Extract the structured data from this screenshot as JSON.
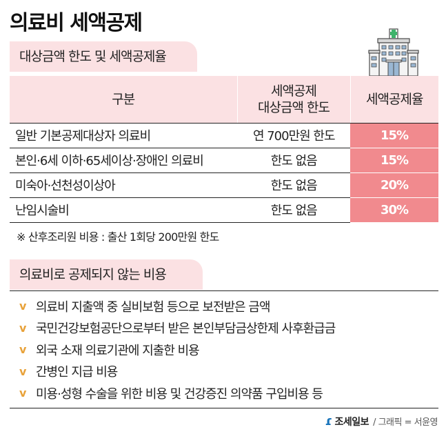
{
  "title": "의료비 세액공제",
  "section1": {
    "tag": "대상금액 한도 및 세액공제율",
    "table": {
      "headers": {
        "col1": "구분",
        "col2_line1": "세액공제",
        "col2_line2": "대상금액 한도",
        "col3": "세액공제율"
      },
      "rows": [
        {
          "category": "일반 기본공제대상자 의료비",
          "limit": "연 700만원 한도",
          "rate": "15%"
        },
        {
          "category": "본인·6세 이하·65세이상·장애인 의료비",
          "limit": "한도 없음",
          "rate": "15%"
        },
        {
          "category": "미숙아·선천성이상아",
          "limit": "한도 없음",
          "rate": "20%"
        },
        {
          "category": "난임시술비",
          "limit": "한도 없음",
          "rate": "30%"
        }
      ]
    },
    "note": "※ 산후조리원 비용 : 출산 1회당 200만원 한도"
  },
  "section2": {
    "tag": "의료비로 공제되지 않는 비용",
    "check_symbol": "v",
    "items": [
      "의료비 지출액 중 실비보험 등으로 보전받은 금액",
      "국민건강보험공단으로부터 받은 본인부담금상한제 사후환급금",
      "외국 소재 의료기관에 지출한 비용",
      "간병인 지급 비용",
      "미용·성형 수술을 위한 비용 및 건강증진 의약품 구입비용 등"
    ]
  },
  "credit": {
    "logo": "조세일보",
    "text": "/ 그래픽 = 서윤영"
  },
  "colors": {
    "pink_light": "#fbe1e3",
    "pink_strong": "#f18a8e",
    "check": "#e8a23a",
    "logo": "#1a75bb"
  },
  "icons": {
    "hospital": "hospital-icon",
    "check": "check-icon"
  }
}
